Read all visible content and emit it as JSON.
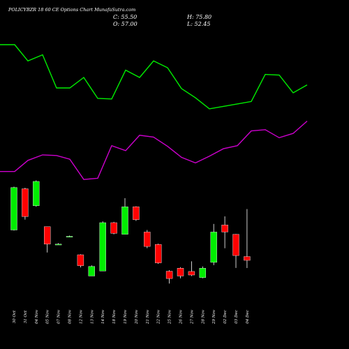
{
  "header": {
    "title": "POLICYBZR 18      60  CE Options  Chart MunafaSutra.com",
    "open": "O: 57.00",
    "close": "C: 55.50",
    "high": "H: 75.80",
    "low": "L: 52.45"
  },
  "colors": {
    "up": "#00ee00",
    "down": "#ff0000",
    "wick": "#ffffff",
    "line1": "#00ee00",
    "line2": "#cc00cc",
    "background": "#000000"
  },
  "chart_data": {
    "type": "candlestick",
    "ylim": [
      37,
      90
    ],
    "categories": [
      "30 Oct",
      "31 Oct",
      "04 Nov",
      "05 Nov",
      "07 Nov",
      "08 Nov",
      "12 Nov",
      "13 Nov",
      "14 Nov",
      "18 Nov",
      "19 Nov",
      "20 Nov",
      "21 Nov",
      "22 Nov",
      "25 Nov",
      "26 Nov",
      "27 Nov",
      "28 Nov",
      "29 Nov",
      "02 Dec",
      "03 Dec",
      "04 Dec"
    ],
    "series": [
      {
        "values": [
          {
            "o": 67.5,
            "h": 84.6,
            "l": 67.3,
            "c": 84.3
          },
          {
            "o": 83.8,
            "h": 84.2,
            "l": 71.6,
            "c": 72.8
          },
          {
            "o": 77.1,
            "h": 87.1,
            "l": 76.7,
            "c": 86.7
          },
          {
            "o": 68.8,
            "h": 68.8,
            "l": 58.6,
            "c": 61.9
          },
          {
            "o": 61.9,
            "h": 62.3,
            "l": 61.7,
            "c": 61.9
          },
          {
            "o": 65.0,
            "h": 65.3,
            "l": 64.6,
            "c": 65.0
          },
          {
            "o": 57.7,
            "h": 57.9,
            "l": 52.7,
            "c": 53.4
          },
          {
            "o": 49.3,
            "h": 53.5,
            "l": 49.3,
            "c": 53.1
          },
          {
            "o": 51.3,
            "h": 70.9,
            "l": 51.3,
            "c": 70.4
          },
          {
            "o": 70.4,
            "h": 70.7,
            "l": 65.8,
            "c": 66.2
          },
          {
            "o": 65.8,
            "h": 80.1,
            "l": 65.8,
            "c": 76.7
          },
          {
            "o": 76.7,
            "h": 76.9,
            "l": 71.1,
            "c": 71.6
          },
          {
            "o": 66.7,
            "h": 67.5,
            "l": 60.3,
            "c": 61.0
          },
          {
            "o": 61.8,
            "h": 62.1,
            "l": 54.1,
            "c": 54.5
          },
          {
            "o": 51.2,
            "h": 51.6,
            "l": 46.3,
            "c": 48.3
          },
          {
            "o": 52.4,
            "h": 52.8,
            "l": 48.4,
            "c": 49.3
          },
          {
            "o": 51.1,
            "h": 55.1,
            "l": 49.3,
            "c": 49.7
          },
          {
            "o": 48.7,
            "h": 53.1,
            "l": 48.4,
            "c": 52.4
          },
          {
            "o": 54.7,
            "h": 69.9,
            "l": 53.6,
            "c": 66.7
          },
          {
            "o": 69.5,
            "h": 72.9,
            "l": 60.3,
            "c": 66.7
          },
          {
            "o": 65.8,
            "h": 65.9,
            "l": 52.5,
            "c": 57.4
          },
          {
            "o": 57.0,
            "h": 75.8,
            "l": 52.45,
            "c": 55.5
          }
        ]
      }
    ],
    "line_series": [
      {
        "color": "#00ee00",
        "values": [
          {
            "x": 0,
            "y": 0.46
          },
          {
            "x": 21,
            "y": 0.46
          },
          {
            "x": 40,
            "y": 3.1
          },
          {
            "x": 61,
            "y": 2.1
          },
          {
            "x": 81,
            "y": 7.5
          },
          {
            "x": 100,
            "y": 7.5
          },
          {
            "x": 120,
            "y": 5.8
          },
          {
            "x": 140,
            "y": 9.2
          },
          {
            "x": 160,
            "y": 9.3
          },
          {
            "x": 180,
            "y": 4.6
          },
          {
            "x": 200,
            "y": 5.8
          },
          {
            "x": 220,
            "y": 3.1
          },
          {
            "x": 240,
            "y": 4.2
          },
          {
            "x": 260,
            "y": 7.6
          },
          {
            "x": 280,
            "y": 9.1
          },
          {
            "x": 300,
            "y": 10.9
          },
          {
            "x": 320,
            "y": 10.5
          },
          {
            "x": 340,
            "y": 10.1
          },
          {
            "x": 360,
            "y": 9.7
          },
          {
            "x": 380,
            "y": 5.3
          },
          {
            "x": 400,
            "y": 5.4
          },
          {
            "x": 420,
            "y": 8.3
          },
          {
            "x": 440,
            "y": 7.0
          }
        ]
      },
      {
        "color": "#cc00cc",
        "values": [
          {
            "x": 0,
            "y": 21.1
          },
          {
            "x": 21,
            "y": 21.1
          },
          {
            "x": 40,
            "y": 19.3
          },
          {
            "x": 61,
            "y": 18.4
          },
          {
            "x": 81,
            "y": 18.5
          },
          {
            "x": 100,
            "y": 19.1
          },
          {
            "x": 120,
            "y": 22.4
          },
          {
            "x": 140,
            "y": 22.2
          },
          {
            "x": 160,
            "y": 16.9
          },
          {
            "x": 180,
            "y": 17.7
          },
          {
            "x": 200,
            "y": 15.2
          },
          {
            "x": 220,
            "y": 15.5
          },
          {
            "x": 240,
            "y": 17.0
          },
          {
            "x": 260,
            "y": 18.8
          },
          {
            "x": 280,
            "y": 19.7
          },
          {
            "x": 300,
            "y": 18.6
          },
          {
            "x": 320,
            "y": 17.4
          },
          {
            "x": 340,
            "y": 16.9
          },
          {
            "x": 360,
            "y": 14.5
          },
          {
            "x": 380,
            "y": 14.3
          },
          {
            "x": 400,
            "y": 15.6
          },
          {
            "x": 420,
            "y": 14.9
          },
          {
            "x": 440,
            "y": 12.9
          }
        ]
      }
    ],
    "line_ylim": [
      0,
      50
    ]
  }
}
